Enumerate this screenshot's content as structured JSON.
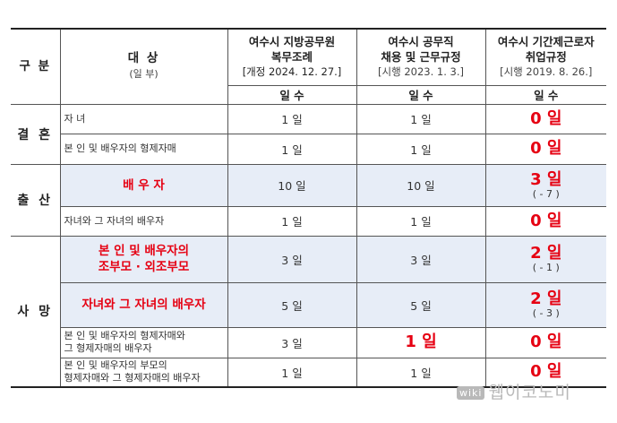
{
  "header": {
    "col_category": "구 분",
    "col_target": "대 상",
    "col_target_sub": "(일 부)",
    "col1_title_1": "여수시 지방공무원",
    "col1_title_2": "복무조례",
    "col1_sub": "[개정 2024. 12. 27.]",
    "col2_title_1": "여수시 공무직",
    "col2_title_2": "채용 및 근무규정",
    "col2_sub": "[시행 2023. 1. 3.]",
    "col3_title_1": "여수시 기간제근로자",
    "col3_title_2": "취업규정",
    "col3_sub": "[시행 2019. 8. 26.]",
    "days_label_1": "일 수",
    "days_label_2": "일 수",
    "days_label_3": "일 수"
  },
  "groups": {
    "marriage": {
      "label": "결 혼",
      "rows": [
        {
          "target": "자 녀",
          "c1": "1 일",
          "c2": "1 일",
          "c3": "0 일"
        },
        {
          "target": "본 인 및 배우자의 형제자매",
          "c1": "1 일",
          "c2": "1 일",
          "c3": "0 일"
        }
      ]
    },
    "birth": {
      "label": "출 산",
      "rows": [
        {
          "target": "배 우 자",
          "c1": "10 일",
          "c2": "10 일",
          "c3": "3 일",
          "c3_note": "( - 7 )"
        },
        {
          "target": "자녀와 그 자녀의 배우자",
          "c1": "1 일",
          "c2": "1 일",
          "c3": "0 일"
        }
      ]
    },
    "death": {
      "label": "사 망",
      "rows": [
        {
          "target_1": "본 인 및 배우자의",
          "target_2": "조부모 · 외조부모",
          "c1": "3 일",
          "c2": "3 일",
          "c3": "2 일",
          "c3_note": "( - 1 )"
        },
        {
          "target": "자녀와 그 자녀의 배우자",
          "c1": "5 일",
          "c2": "5 일",
          "c3": "2 일",
          "c3_note": "( - 3 )"
        },
        {
          "target_1": "본 인 및 배우자의 형제자매와",
          "target_2": "그 형제자매의 배우자",
          "c1": "3 일",
          "c2": "1 일",
          "c3": "0 일"
        },
        {
          "target_1": "본 인 및 배우자의 부모의",
          "target_2": "형제자매와 그 형제자매의 배우자",
          "c1": "1 일",
          "c2": "1 일",
          "c3": "0 일"
        }
      ]
    }
  },
  "watermark": {
    "logo": "wiki",
    "text": "웹이코노미"
  },
  "colors": {
    "accent_red": "#e60012",
    "shade": "#e7edf7"
  }
}
